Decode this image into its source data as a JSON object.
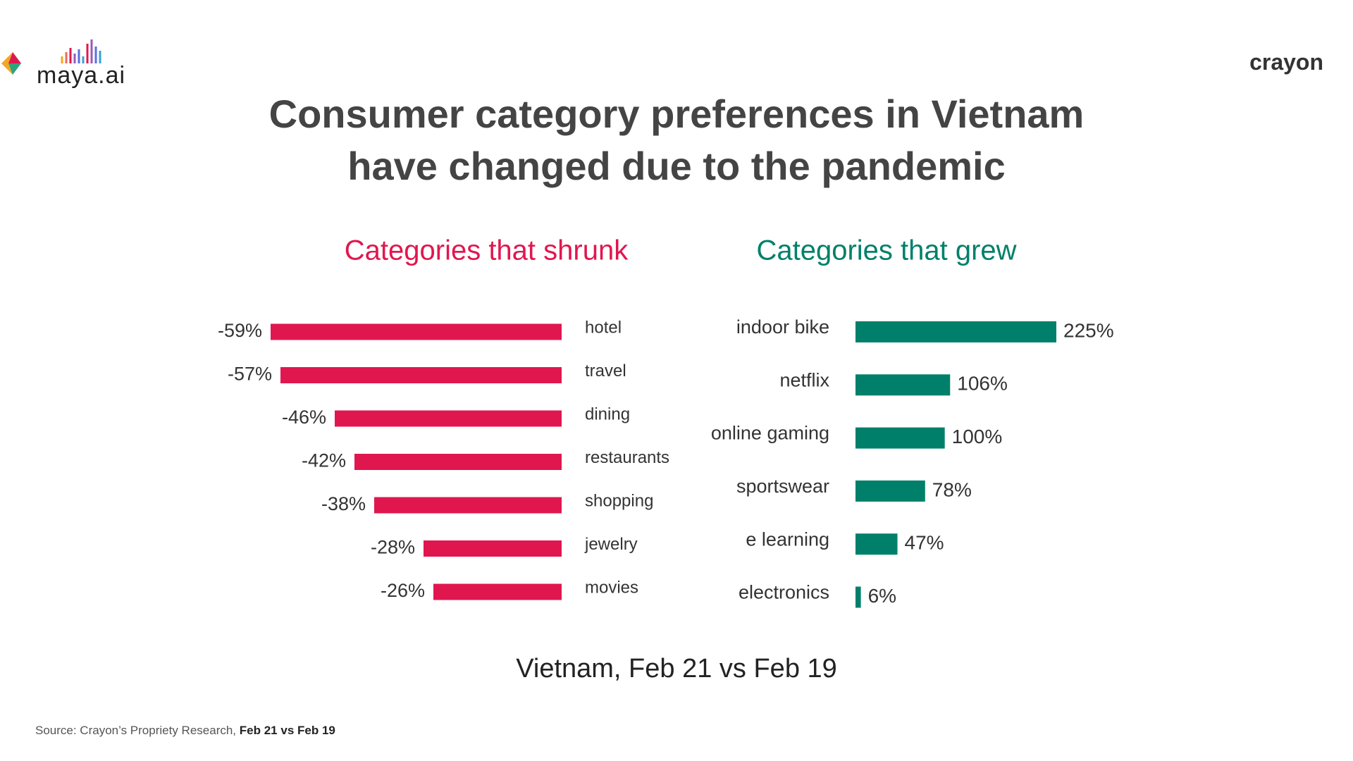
{
  "header": {
    "logo_left": "maya.ai",
    "logo_right": "crayon",
    "title": "Consumer category preferences in Vietnam have changed due to the pandemic"
  },
  "chart_data": [
    {
      "type": "bar",
      "orientation": "horizontal",
      "direction": "left",
      "title": "Categories that shrunk",
      "color": "#e0174f",
      "categories": [
        "hotel",
        "travel",
        "dining",
        "restaurants",
        "shopping",
        "jewelry",
        "movies"
      ],
      "values": [
        -59,
        -57,
        -46,
        -42,
        -38,
        -28,
        -26
      ],
      "value_labels": [
        "-59%",
        "-57%",
        "-46%",
        "-42%",
        "-38%",
        "-28%",
        "-26%"
      ]
    },
    {
      "type": "bar",
      "orientation": "horizontal",
      "direction": "right",
      "title": "Categories that grew",
      "color": "#00806a",
      "categories": [
        "indoor bike",
        "netflix",
        "online gaming",
        "sportswear",
        "e learning",
        "electronics"
      ],
      "values": [
        225,
        106,
        100,
        78,
        47,
        6
      ],
      "value_labels": [
        "225%",
        "106%",
        "100%",
        "78%",
        "47%",
        "6%"
      ]
    }
  ],
  "caption": "Vietnam, Feb 21 vs Feb 19",
  "source": {
    "text": "Source: Crayon’s Propriety Research,",
    "bold": "Feb 21 vs Feb 19"
  }
}
